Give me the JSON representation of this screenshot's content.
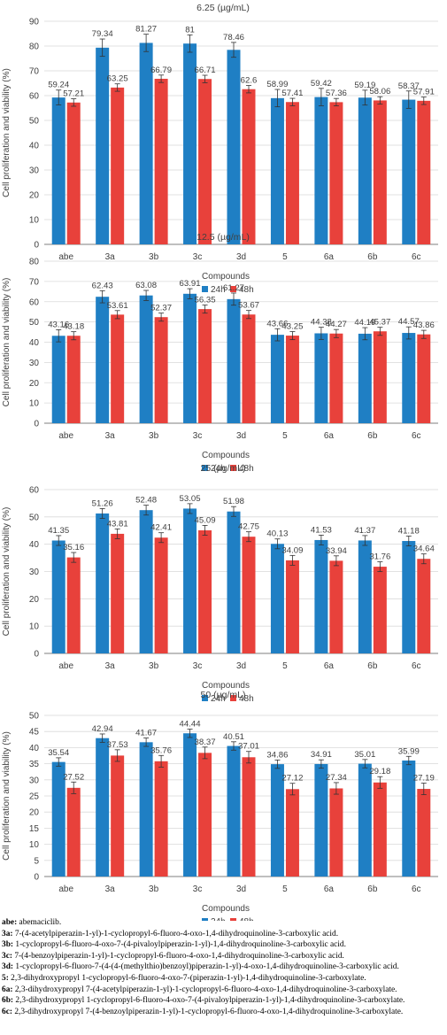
{
  "colors": {
    "series_24h": "#1f7fc4",
    "series_48h": "#e8413b",
    "axis": "#7f7f7f",
    "grid": "#d9d9d9",
    "text": "#404040"
  },
  "chart_data": [
    {
      "type": "bar",
      "title": "6.25 (µg/mL)",
      "xlabel": "Compounds",
      "ylabel": "Cell proliferation and viability (%)",
      "categories": [
        "abe",
        "3a",
        "3b",
        "3c",
        "3d",
        "5",
        "6a",
        "6b",
        "6c"
      ],
      "ylim": [
        0,
        90
      ],
      "yticks": [
        0,
        10,
        20,
        30,
        40,
        50,
        60,
        70,
        80,
        90
      ],
      "series": [
        {
          "name": "24h",
          "values": [
            59.24,
            79.34,
            81.27,
            81,
            78.46,
            58.99,
            59.42,
            59.19,
            58.37
          ],
          "labels": [
            "59.24",
            "79.34",
            "81.27",
            "81",
            "78.46",
            "58.99",
            "59.42",
            "59.19",
            "58.37"
          ],
          "errors": [
            3,
            3.5,
            3.5,
            3.5,
            3,
            3.5,
            3.5,
            3,
            3.5
          ]
        },
        {
          "name": "48h",
          "values": [
            57.21,
            63.25,
            66.79,
            66.71,
            62.6,
            57.41,
            57.36,
            58.06,
            57.91
          ],
          "labels": [
            "57.21",
            "63.25",
            "66.79",
            "66.71",
            "62.6",
            "57.41",
            "57.36",
            "58.06",
            "57.91"
          ],
          "errors": [
            1.5,
            1.5,
            1.5,
            1.5,
            1.5,
            1.5,
            1.5,
            1.5,
            1.5
          ]
        }
      ],
      "legend": "bottom"
    },
    {
      "type": "bar",
      "title": "12.5 (µg/mL)",
      "xlabel": "Compounds",
      "ylabel": "Cell proliferation and viability (%)",
      "categories": [
        "abe",
        "3a",
        "3b",
        "3c",
        "3d",
        "5",
        "6a",
        "6b",
        "6c"
      ],
      "ylim": [
        0,
        80
      ],
      "yticks": [
        0,
        10,
        20,
        30,
        40,
        50,
        60,
        70,
        80
      ],
      "series": [
        {
          "name": "24h",
          "values": [
            43.16,
            62.43,
            63.08,
            63.91,
            61.27,
            43.66,
            44.38,
            44.19,
            44.57
          ],
          "labels": [
            "43.16",
            "62.43",
            "63.08",
            "63.91",
            "61.27",
            "43.66",
            "44.38",
            "44.19",
            "44.57"
          ],
          "errors": [
            3,
            3,
            2.5,
            2.5,
            3,
            3,
            3,
            3,
            3
          ]
        },
        {
          "name": "48h",
          "values": [
            43.18,
            53.61,
            52.37,
            56.35,
            53.67,
            43.25,
            44.27,
            45.37,
            43.86
          ],
          "labels": [
            "43.18",
            "53.61",
            "52.37",
            "56.35",
            "53.67",
            "43.25",
            "44.27",
            "45.37",
            "43.86"
          ],
          "errors": [
            2,
            2,
            2,
            2,
            2,
            2,
            2,
            2,
            2
          ]
        }
      ],
      "legend": "bottom"
    },
    {
      "type": "bar",
      "title": "25 (µg/mL)",
      "xlabel": "Compounds",
      "ylabel": "Cell proliferation and viability (%)",
      "categories": [
        "abe",
        "3a",
        "3b",
        "3c",
        "3d",
        "5",
        "6a",
        "6b",
        "6c"
      ],
      "ylim": [
        0,
        60
      ],
      "yticks": [
        0,
        10,
        20,
        30,
        40,
        50,
        60
      ],
      "series": [
        {
          "name": "24h",
          "values": [
            41.35,
            51.26,
            52.48,
            53.05,
            51.98,
            40.13,
            41.53,
            41.37,
            41.18
          ],
          "labels": [
            "41.35",
            "51.26",
            "52.48",
            "53.05",
            "51.98",
            "40.13",
            "41.53",
            "41.37",
            "41.18"
          ],
          "errors": [
            1.8,
            1.8,
            1.8,
            1.8,
            1.8,
            1.8,
            1.8,
            1.8,
            1.8
          ]
        },
        {
          "name": "48h",
          "values": [
            35.16,
            43.81,
            42.41,
            45.09,
            42.75,
            34.09,
            33.94,
            31.76,
            34.64
          ],
          "labels": [
            "35.16",
            "43.81",
            "42.41",
            "45.09",
            "42.75",
            "34.09",
            "33.94",
            "31.76",
            "34.64"
          ],
          "errors": [
            1.8,
            1.8,
            1.8,
            1.8,
            1.8,
            1.8,
            1.8,
            1.8,
            1.8
          ]
        }
      ],
      "legend": "bottom"
    },
    {
      "type": "bar",
      "title": "50 (µg/mL)",
      "xlabel": "Compounds",
      "ylabel": "Cell proliferation and viability (%)",
      "categories": [
        "abe",
        "3a",
        "3b",
        "3c",
        "3d",
        "5",
        "6a",
        "6b",
        "6c"
      ],
      "ylim": [
        0,
        50
      ],
      "yticks": [
        0,
        5,
        10,
        15,
        20,
        25,
        30,
        35,
        40,
        45,
        50
      ],
      "series": [
        {
          "name": "24h",
          "values": [
            35.54,
            42.94,
            41.67,
            44.44,
            40.51,
            34.86,
            34.91,
            35.01,
            35.99
          ],
          "labels": [
            "35.54",
            "42.94",
            "41.67",
            "44.44",
            "40.51",
            "34.86",
            "34.91",
            "35.01",
            "35.99"
          ],
          "errors": [
            1.3,
            1.3,
            1.3,
            1.3,
            1.3,
            1.3,
            1.3,
            1.3,
            1.3
          ]
        },
        {
          "name": "48h",
          "values": [
            27.52,
            37.53,
            35.76,
            38.37,
            37.01,
            27.12,
            27.34,
            29.18,
            27.19
          ],
          "labels": [
            "27.52",
            "37.53",
            "35.76",
            "38.37",
            "37.01",
            "27.12",
            "27.34",
            "29.18",
            "27.19"
          ],
          "errors": [
            1.8,
            1.8,
            1.8,
            1.8,
            1.8,
            1.8,
            1.8,
            1.8,
            1.8
          ]
        }
      ],
      "legend": "bottom"
    }
  ],
  "abbreviations": [
    {
      "code": "abe:",
      "text": " abemaciclib."
    },
    {
      "code": "3a:",
      "text": " 7-(4-acetylpiperazin-1-yl)-1-cyclopropyl-6-fluoro-4-oxo-1,4-dihydroquinoline-3-carboxylic acid."
    },
    {
      "code": "3b:",
      "text": " 1-cyclopropyl-6-fluoro-4-oxo-7-(4-pivaloylpiperazin-1-yl)-1,4-dihydroquinoline-3-carboxylic acid."
    },
    {
      "code": "3c:",
      "text": " 7-(4-benzoylpiperazin-1-yl)-1-cyclopropyl-6-fluoro-4-oxo-1,4-dihydroquinoline-3-carboxylic acid."
    },
    {
      "code": "3d:",
      "text": " 1-cyclopropyl-6-fluoro-7-(4-(4-(methylthio)benzoyl)piperazin-1-yl)-4-oxo-1,4-dihydroquinoline-3-carboxylic acid."
    },
    {
      "code": "5:",
      "text": " 2,3-dihydroxypropyl 1-cyclopropyl-6-fluoro-4-oxo-7-(piperazin-1-yl)-1,4-dihydroquinoline-3-carboxylate."
    },
    {
      "code": "6a:",
      "text": " 2,3-dihydroxypropyl 7-(4-acetylpiperazin-1-yl)-1-cyclopropyl-6-fluoro-4-oxo-1,4-dihydroquinoline-3-carboxylate."
    },
    {
      "code": "6b:",
      "text": " 2,3-dihydroxypropyl 1-cyclopropyl-6-fluoro-4-oxo-7-(4-pivaloylpiperazin-1-yl)-1,4-dihydroquinoline-3-carboxylate."
    },
    {
      "code": "6c:",
      "text": " 2,3-dihydroxypropyl 7-(4-benzoylpiperazin-1-yl)-1-cyclopropyl-6-fluoro-4-oxo-1,4-dihydroquinoline-3-carboxylate."
    }
  ]
}
